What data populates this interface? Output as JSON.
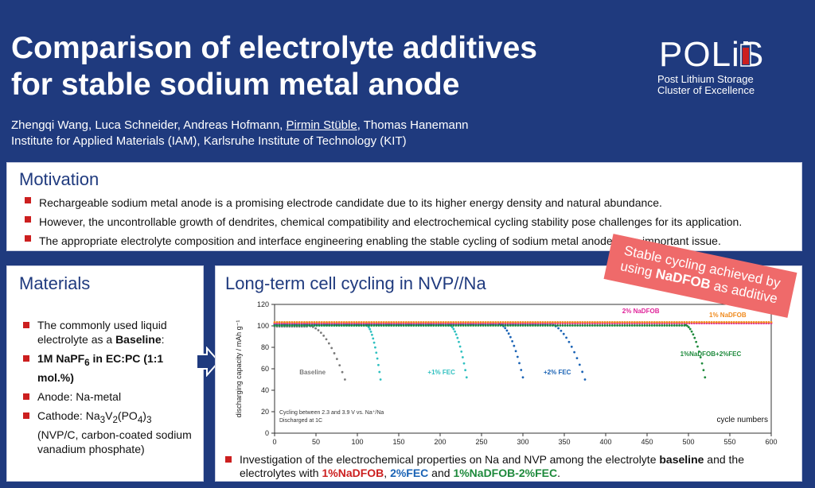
{
  "header": {
    "title_line1": "Comparison of electrolyte additives",
    "title_line2": "for stable sodium metal anode",
    "authors_pre": "Zhengqi Wang, Luca Schneider, Andreas Hofmann, ",
    "authors_presenter": "Pirmin Stüble",
    "authors_post": ", Thomas Hanemann",
    "affiliation": "Institute for Applied Materials (IAM), Karlsruhe Institute of Technology (KIT)"
  },
  "logo": {
    "main": "POLiS",
    "sub_line1": "Post Lithium Storage",
    "sub_line2": "Cluster of Excellence"
  },
  "motivation": {
    "heading": "Motivation",
    "bullets": [
      "Rechargeable sodium metal anode is a promising electrode candidate due to its higher energy density and natural abundance.",
      "However, the uncontrollable growth of dendrites, chemical compatibility and electrochemical cycling stability pose challenges for its application.",
      "The appropriate electrolyte composition and interface engineering enabling the stable cycling of sodium metal anode is an important issue."
    ]
  },
  "materials": {
    "heading": "Materials",
    "b1_pre": "The commonly used liquid electrolyte as a ",
    "b1_bold": "Baseline",
    "b1_post": ":",
    "b2_a": "1M NaPF",
    "b2_sub": "6",
    "b2_b": " in EC:PC (1:1 mol.%)",
    "b3": "Anode: Na-metal",
    "b4_a": "Cathode: Na",
    "b4_s1": "3",
    "b4_b": "V",
    "b4_s2": "2",
    "b4_c": "(PO",
    "b4_s3": "4",
    "b4_d": ")",
    "b4_s4": "3",
    "b4_e": "(NVP/C, carbon-coated sodium vanadium phosphate)"
  },
  "cycling": {
    "heading": "Long-term cell cycling in NVP//Na",
    "bottom_pre": "Investigation of the electrochemical properties on Na and NVP among the electrolyte ",
    "bottom_baseline": "baseline",
    "bottom_mid": " and the electrolytes with ",
    "bottom_naDfob": "1%NaDFOB",
    "bottom_sep1": ", ",
    "bottom_fec": "2%FEC",
    "bottom_and": " and ",
    "bottom_mix": "1%NaDFOB-2%FEC",
    "bottom_end": "."
  },
  "banner": {
    "line1": "Stable cycling achieved by",
    "line2_pre": "using ",
    "line2_bold": "NaDFOB",
    "line2_post": " as additive"
  },
  "colors": {
    "background": "#1f3a7e",
    "accent_red": "#cc1f1f",
    "banner": "#ef6a6a"
  },
  "chart_data": {
    "type": "scatter",
    "ylabel": "discharging capacity / mAh g⁻¹",
    "xlabel": "cycle numbers",
    "xlim": [
      0,
      600
    ],
    "ylim": [
      0,
      120
    ],
    "xticks": [
      "0",
      "50",
      "100",
      "150",
      "200",
      "250",
      "300",
      "350",
      "400",
      "450",
      "500",
      "550",
      "600"
    ],
    "yticks": [
      "0",
      "20",
      "40",
      "60",
      "80",
      "100",
      "120"
    ],
    "annotation_line1": "Cycling between 2.3 and 3.9 V vs. Na⁺/Na",
    "annotation_line2": "Discharged at 1C",
    "series": [
      {
        "name": "Baseline",
        "color": "#7a7a7a",
        "stable": 100,
        "fail_start": 40,
        "end_cycle": 85,
        "end_value": 50,
        "label_x": 30,
        "label_y": 55
      },
      {
        "name": "+1% FEC",
        "color": "#2fc0c0",
        "stable": 101,
        "fail_start": 110,
        "end_cycle": 128,
        "end_value": 50,
        "label_x": 185,
        "label_y": 55
      },
      {
        "name": "+1% FEC",
        "color": "#2fc0c0",
        "stable": 101,
        "fail_start": 210,
        "end_cycle": 232,
        "end_value": 52,
        "label_x": null,
        "label_y": null
      },
      {
        "name": "+2% FEC",
        "color": "#1a63b5",
        "stable": 102,
        "fail_start": 270,
        "end_cycle": 300,
        "end_value": 52,
        "label_x": 325,
        "label_y": 55
      },
      {
        "name": "+2% FEC",
        "color": "#1a63b5",
        "stable": 102,
        "fail_start": 330,
        "end_cycle": 375,
        "end_value": 50,
        "label_x": null,
        "label_y": null
      },
      {
        "name": "1%NaDFOB+2%FEC",
        "color": "#1e8a3c",
        "stable": 101,
        "fail_start": 495,
        "end_cycle": 520,
        "end_value": 52,
        "label_x": 490,
        "label_y": 72
      },
      {
        "name": "2% NaDFOB",
        "color": "#e0249a",
        "stable": 103,
        "fail_start": null,
        "end_cycle": 600,
        "end_value": 101,
        "label_x": 420,
        "label_y": 112
      },
      {
        "name": "1% NaDFOB",
        "color": "#f08a1c",
        "stable": 104,
        "fail_start": null,
        "end_cycle": 600,
        "end_value": 102,
        "label_x": 525,
        "label_y": 108
      }
    ]
  }
}
